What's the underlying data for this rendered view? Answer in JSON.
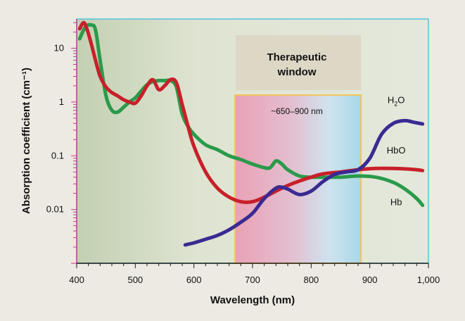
{
  "chart_data": {
    "type": "line",
    "xlabel": "Wavelength (nm)",
    "ylabel": "Absorption coefficient (cm⁻¹)",
    "xlim": [
      400,
      1000
    ],
    "ylim": [
      0.001,
      35
    ],
    "y_scale": "log",
    "x_ticks": [
      400,
      500,
      600,
      700,
      800,
      900,
      1000
    ],
    "x_tick_labels": [
      "400",
      "500",
      "600",
      "700",
      "800",
      "900",
      "1,000"
    ],
    "y_ticks": [
      0.01,
      0.1,
      1,
      10
    ],
    "y_tick_labels": [
      "0.01",
      "0.1",
      "1",
      "10"
    ],
    "grid": false,
    "window_band": {
      "title_line1": "Therapeutic",
      "title_line2": "window",
      "range_label": "~650–900 nm",
      "x_start": 670,
      "x_end": 885
    },
    "series": [
      {
        "name": "Hb",
        "label_main": "Hb",
        "label_sub": "",
        "label_at": [
          945,
          0.012
        ],
        "color": "#2a9a4a",
        "x": [
          405,
          415,
          425,
          432,
          440,
          450,
          460,
          470,
          480,
          490,
          500,
          510,
          520,
          530,
          540,
          550,
          560,
          570,
          580,
          590,
          600,
          620,
          640,
          660,
          680,
          700,
          720,
          730,
          740,
          750,
          760,
          780,
          800,
          820,
          850,
          880,
          910,
          940,
          960,
          980,
          990
        ],
        "values": [
          15,
          25,
          27,
          22,
          6,
          1.3,
          0.7,
          0.65,
          0.8,
          1.0,
          1.2,
          1.6,
          2.1,
          2.4,
          2.5,
          2.5,
          2.5,
          1.9,
          0.6,
          0.35,
          0.25,
          0.16,
          0.13,
          0.1,
          0.085,
          0.07,
          0.06,
          0.06,
          0.08,
          0.07,
          0.055,
          0.042,
          0.04,
          0.04,
          0.04,
          0.042,
          0.04,
          0.032,
          0.024,
          0.016,
          0.012
        ]
      },
      {
        "name": "HbO",
        "label_main": "HbO",
        "label_sub": "",
        "label_at": [
          945,
          0.11
        ],
        "color": "#c8202a",
        "x": [
          405,
          412,
          418,
          425,
          432,
          440,
          450,
          460,
          470,
          480,
          490,
          500,
          510,
          520,
          530,
          540,
          550,
          560,
          570,
          580,
          590,
          600,
          620,
          640,
          660,
          680,
          700,
          720,
          740,
          760,
          780,
          800,
          820,
          850,
          880,
          910,
          940,
          960,
          980,
          990
        ],
        "values": [
          23,
          30,
          22,
          12,
          6,
          3,
          1.9,
          1.5,
          1.3,
          1.1,
          1.0,
          0.95,
          1.3,
          2.0,
          2.6,
          1.7,
          2.0,
          2.6,
          2.3,
          0.9,
          0.35,
          0.15,
          0.05,
          0.025,
          0.017,
          0.014,
          0.014,
          0.017,
          0.022,
          0.028,
          0.034,
          0.04,
          0.046,
          0.05,
          0.055,
          0.058,
          0.058,
          0.057,
          0.055,
          0.053
        ]
      },
      {
        "name": "H2O",
        "label_main": "H",
        "label_sub": "2",
        "label_tail": "O",
        "label_at": [
          945,
          0.95
        ],
        "color": "#3a2a92",
        "x": [
          585,
          600,
          620,
          640,
          660,
          680,
          700,
          720,
          740,
          750,
          760,
          780,
          800,
          820,
          840,
          860,
          880,
          900,
          920,
          940,
          960,
          975,
          990
        ],
        "values": [
          0.0022,
          0.0024,
          0.0028,
          0.0033,
          0.0042,
          0.0058,
          0.0085,
          0.016,
          0.025,
          0.026,
          0.024,
          0.019,
          0.022,
          0.033,
          0.045,
          0.05,
          0.055,
          0.09,
          0.25,
          0.4,
          0.45,
          0.42,
          0.39
        ]
      }
    ]
  }
}
